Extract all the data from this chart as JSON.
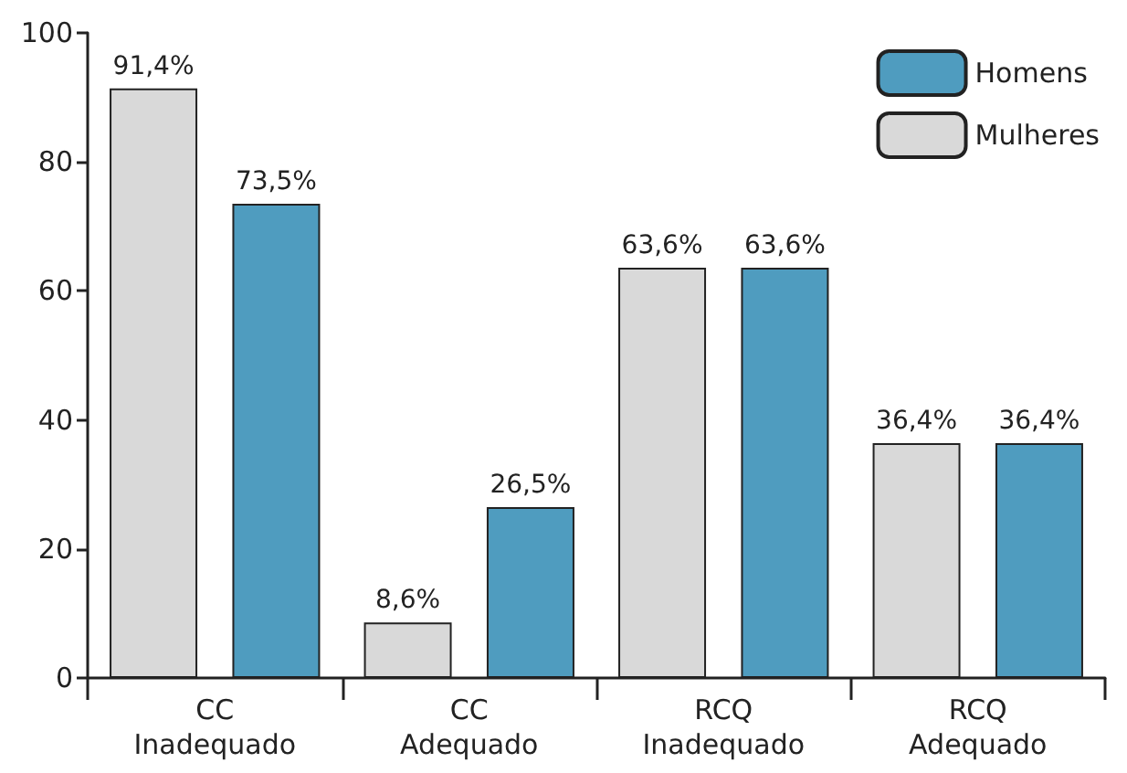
{
  "chart_data": {
    "type": "bar",
    "categories": [
      "CC\nInadequado",
      "CC\nAdequado",
      "RCQ\nInadequado",
      "RCQ\nAdequado"
    ],
    "series": [
      {
        "name": "Mulheres",
        "color": "#d9d9d9",
        "values": [
          91.4,
          8.6,
          63.6,
          36.4
        ],
        "value_labels": [
          "91,4%",
          "8,6%",
          "63,6%",
          "36,4%"
        ]
      },
      {
        "name": "Homens",
        "color": "#4f9cbf",
        "values": [
          73.5,
          26.5,
          63.6,
          36.4
        ],
        "value_labels": [
          "73,5%",
          "26,5%",
          "63,6%",
          "36,4%"
        ]
      }
    ],
    "ylim": [
      0,
      100
    ],
    "yticks": [
      0,
      20,
      40,
      60,
      80,
      100
    ],
    "grid": false,
    "legend": "top right"
  }
}
